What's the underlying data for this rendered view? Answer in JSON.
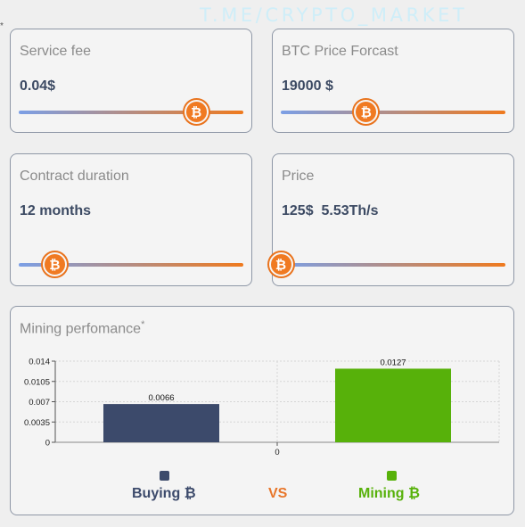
{
  "watermark": "T.ME/CRYPTO_MARKET",
  "corner_mark": "*",
  "cards": {
    "service_fee": {
      "title": "Service fee",
      "value": "0.04$",
      "slider_level": 0.79
    },
    "btc_forecast": {
      "title": "BTC Price Forcast",
      "value": "19000 $",
      "slider_level": 0.38
    },
    "contract_duration": {
      "title": "Contract duration",
      "value": "12 months",
      "slider_level": 0.16
    },
    "price": {
      "title": "Price",
      "value": "125$  5.53Th/s",
      "slider_level": 0.0
    }
  },
  "slider_colors": {
    "start": "#7b9fe6",
    "end": "#ef7a1e",
    "thumb": "#f07a22"
  },
  "thumb_icon": "bitcoin-icon",
  "thumb_glyph": "₿",
  "performance": {
    "title": "Mining perfomance",
    "title_mark": "*",
    "legend": {
      "buying": {
        "label": "Buying ₿",
        "color": "#3c4a6b"
      },
      "vs": {
        "label": "VS",
        "color": "#e8762a"
      },
      "mining": {
        "label": "Mining ₿",
        "color": "#57b10a"
      }
    }
  },
  "chart_data": {
    "type": "bar",
    "categories": [
      "0"
    ],
    "series": [
      {
        "name": "Buying ₿",
        "values": [
          0.0066
        ],
        "color": "#3c4a6b"
      },
      {
        "name": "Mining ₿",
        "values": [
          0.0127
        ],
        "color": "#57b10a"
      }
    ],
    "data_labels": [
      "0.0066",
      "0.0127"
    ],
    "yticks": [
      "0",
      "0.0035",
      "0.007",
      "0.0105",
      "0.014"
    ],
    "ylim": [
      0,
      0.014
    ],
    "grid": true,
    "legend_position": "bottom"
  }
}
